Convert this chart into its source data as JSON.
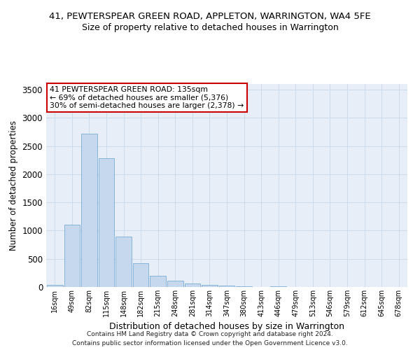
{
  "title1": "41, PEWTERSPEAR GREEN ROAD, APPLETON, WARRINGTON, WA4 5FE",
  "title2": "Size of property relative to detached houses in Warrington",
  "xlabel": "Distribution of detached houses by size in Warrington",
  "ylabel": "Number of detached properties",
  "categories": [
    "16sqm",
    "49sqm",
    "82sqm",
    "115sqm",
    "148sqm",
    "182sqm",
    "215sqm",
    "248sqm",
    "281sqm",
    "314sqm",
    "347sqm",
    "380sqm",
    "413sqm",
    "446sqm",
    "479sqm",
    "513sqm",
    "546sqm",
    "579sqm",
    "612sqm",
    "645sqm",
    "678sqm"
  ],
  "values": [
    40,
    1100,
    2720,
    2280,
    900,
    420,
    200,
    110,
    60,
    40,
    25,
    15,
    5,
    12,
    2,
    2,
    0,
    0,
    0,
    0,
    0
  ],
  "bar_color": "#c5d8ee",
  "bar_edge_color": "#7aadd4",
  "ylim": [
    0,
    3600
  ],
  "yticks": [
    0,
    500,
    1000,
    1500,
    2000,
    2500,
    3000,
    3500
  ],
  "annotation_line1": "41 PEWTERSPEAR GREEN ROAD: 135sqm",
  "annotation_line2": "← 69% of detached houses are smaller (5,376)",
  "annotation_line3": "30% of semi-detached houses are larger (2,378) →",
  "annotation_box_color": "#ffffff",
  "annotation_border_color": "#cc0000",
  "footer1": "Contains HM Land Registry data © Crown copyright and database right 2024.",
  "footer2": "Contains public sector information licensed under the Open Government Licence v3.0.",
  "grid_color": "#cddaea",
  "background_color": "#e8eef8",
  "title_fontsize": 9.5,
  "subtitle_fontsize": 9,
  "ylabel_fontsize": 8.5,
  "xlabel_fontsize": 9
}
